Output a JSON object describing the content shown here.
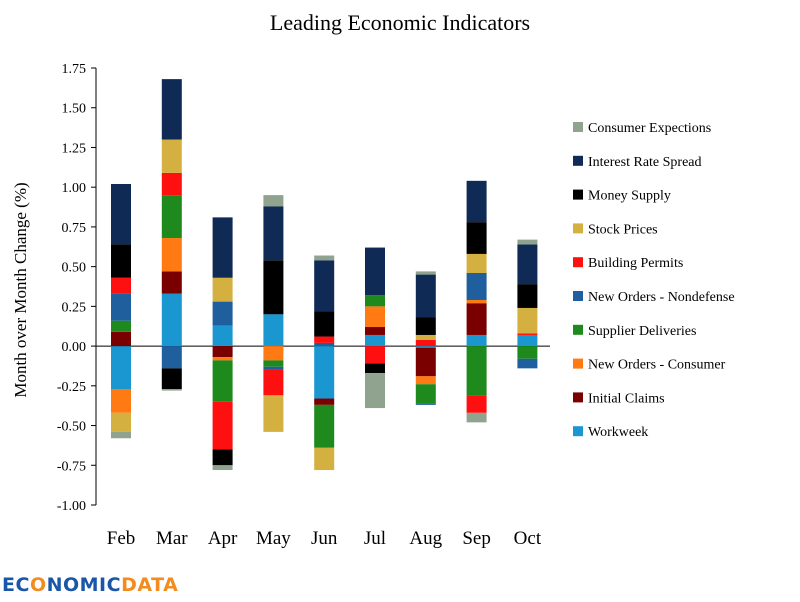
{
  "chart_data": {
    "type": "bar",
    "stacked": true,
    "title": "Leading Economic Indicators",
    "xlabel": "",
    "ylabel": "Month over Month Change (%)",
    "ylim": [
      -1.0,
      1.75
    ],
    "yticks": [
      "1.75",
      "1.50",
      "1.25",
      "1.00",
      "0.75",
      "0.50",
      "0.25",
      "0.00",
      "-0.25",
      "-0.50",
      "-0.75",
      "-1.00"
    ],
    "ytick_values": [
      1.75,
      1.5,
      1.25,
      1.0,
      0.75,
      0.5,
      0.25,
      0.0,
      -0.25,
      -0.5,
      -0.75,
      -1.0
    ],
    "grid": false,
    "legend_position": "right",
    "categories": [
      "Feb",
      "Mar",
      "Apr",
      "May",
      "Jun",
      "Jul",
      "Aug",
      "Sep",
      "Oct"
    ],
    "series": [
      {
        "name": "Workweek",
        "color": "#1a96d0",
        "values": [
          -0.27,
          0.33,
          0.13,
          0.2,
          -0.33,
          0.07,
          -0.01,
          0.07,
          0.07
        ]
      },
      {
        "name": "Initial Claims",
        "color": "#7a0000",
        "values": [
          0.09,
          0.14,
          -0.07,
          0.0,
          -0.04,
          0.05,
          -0.18,
          0.2,
          0.0
        ]
      },
      {
        "name": "New Orders - Consumer",
        "color": "#ff7a12",
        "values": [
          -0.15,
          0.21,
          -0.02,
          -0.09,
          0.0,
          0.13,
          -0.05,
          0.02,
          0.0
        ]
      },
      {
        "name": "Supplier Deliveries",
        "color": "#1e8a1e",
        "values": [
          0.07,
          0.27,
          -0.26,
          -0.04,
          -0.27,
          0.07,
          -0.12,
          -0.31,
          -0.08
        ]
      },
      {
        "name": "New Orders - Nondefense",
        "color": "#1f5f9e",
        "values": [
          0.17,
          -0.14,
          0.15,
          -0.02,
          0.02,
          0.0,
          -0.01,
          0.17,
          -0.06
        ]
      },
      {
        "name": "Building Permits",
        "color": "#ff1010",
        "values": [
          0.1,
          0.14,
          -0.3,
          -0.16,
          0.04,
          -0.11,
          0.04,
          -0.11,
          0.01
        ]
      },
      {
        "name": "Stock Prices",
        "color": "#d4b040",
        "values": [
          -0.12,
          0.21,
          0.15,
          -0.23,
          -0.14,
          0.0,
          0.03,
          0.12,
          0.16
        ]
      },
      {
        "name": "Money Supply",
        "color": "#000000",
        "values": [
          0.21,
          -0.13,
          -0.1,
          0.34,
          0.16,
          -0.06,
          0.11,
          0.2,
          0.15
        ]
      },
      {
        "name": "Interest Rate Spread",
        "color": "#0f2a55",
        "values": [
          0.38,
          0.38,
          0.38,
          0.34,
          0.32,
          0.3,
          0.27,
          0.26,
          0.25
        ]
      },
      {
        "name": "Consumer Expections",
        "color": "#8fa38f",
        "values": [
          -0.04,
          -0.01,
          -0.03,
          0.07,
          0.03,
          -0.22,
          0.02,
          -0.06,
          0.03
        ]
      }
    ],
    "legend_order": [
      "Consumer Expections",
      "Interest Rate Spread",
      "Money Supply",
      "Stock Prices",
      "Building Permits",
      "New Orders - Nondefense",
      "Supplier Deliveries",
      "New Orders - Consumer",
      "Initial Claims",
      "Workweek"
    ]
  },
  "logo": {
    "text_ec": "EC",
    "text_o": "O",
    "text_rest": "NOMIC",
    "text_data": "DATA",
    "color_primary": "#1a56a8",
    "color_accent": "#f28c1e"
  }
}
